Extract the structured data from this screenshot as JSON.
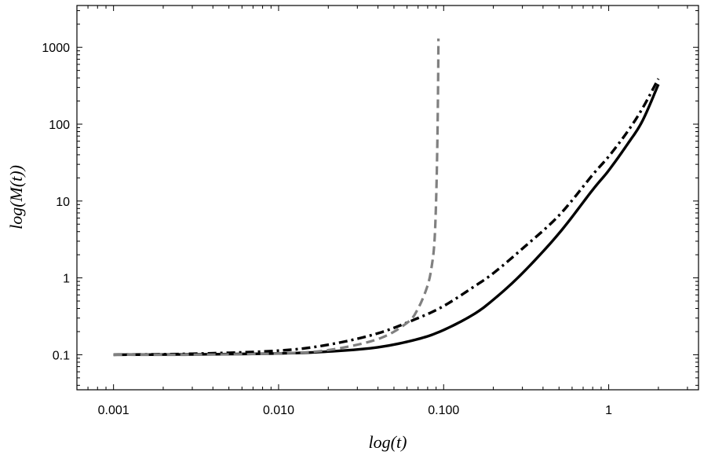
{
  "chart_data": {
    "type": "line",
    "title": "",
    "xlabel": "log(t)",
    "ylabel": "log(M(t))",
    "xscale": "log",
    "yscale": "log",
    "xlim": [
      0.0006,
      3.5
    ],
    "ylim": [
      0.035,
      3500
    ],
    "grid": false,
    "legend": "none",
    "xticks": [
      {
        "value": 0.001,
        "label": "0.001"
      },
      {
        "value": 0.01,
        "label": "0.010"
      },
      {
        "value": 0.1,
        "label": "0.100"
      },
      {
        "value": 1,
        "label": "1"
      }
    ],
    "yticks": [
      {
        "value": 0.1,
        "label": "0.1"
      },
      {
        "value": 1,
        "label": "1"
      },
      {
        "value": 10,
        "label": "10"
      },
      {
        "value": 100,
        "label": "100"
      },
      {
        "value": 1000,
        "label": "1000"
      }
    ],
    "series": [
      {
        "style": "solid",
        "color": "#000000",
        "x": [
          0.001,
          0.003,
          0.01,
          0.02,
          0.04,
          0.07,
          0.1,
          0.15,
          0.2,
          0.3,
          0.5,
          0.8,
          1.0,
          1.3,
          1.6,
          2.0
        ],
        "y": [
          0.1,
          0.101,
          0.104,
          0.11,
          0.125,
          0.16,
          0.21,
          0.33,
          0.52,
          1.15,
          3.8,
          14,
          25,
          55,
          110,
          330
        ]
      },
      {
        "style": "dashdot",
        "color": "#000000",
        "x": [
          0.001,
          0.003,
          0.01,
          0.02,
          0.04,
          0.07,
          0.1,
          0.15,
          0.2,
          0.3,
          0.5,
          0.8,
          1.0,
          1.3,
          1.6,
          2.0
        ],
        "y": [
          0.1,
          0.103,
          0.113,
          0.135,
          0.19,
          0.3,
          0.43,
          0.75,
          1.15,
          2.4,
          6.5,
          22,
          38,
          80,
          160,
          390
        ]
      },
      {
        "style": "dashed",
        "color": "#808080",
        "x": [
          0.001,
          0.003,
          0.01,
          0.02,
          0.04,
          0.06,
          0.07,
          0.08,
          0.085,
          0.088,
          0.09,
          0.0915,
          0.0925,
          0.093
        ],
        "y": [
          0.1,
          0.1,
          0.104,
          0.115,
          0.16,
          0.26,
          0.4,
          0.8,
          1.5,
          3,
          10,
          50,
          300,
          1300
        ]
      }
    ]
  }
}
